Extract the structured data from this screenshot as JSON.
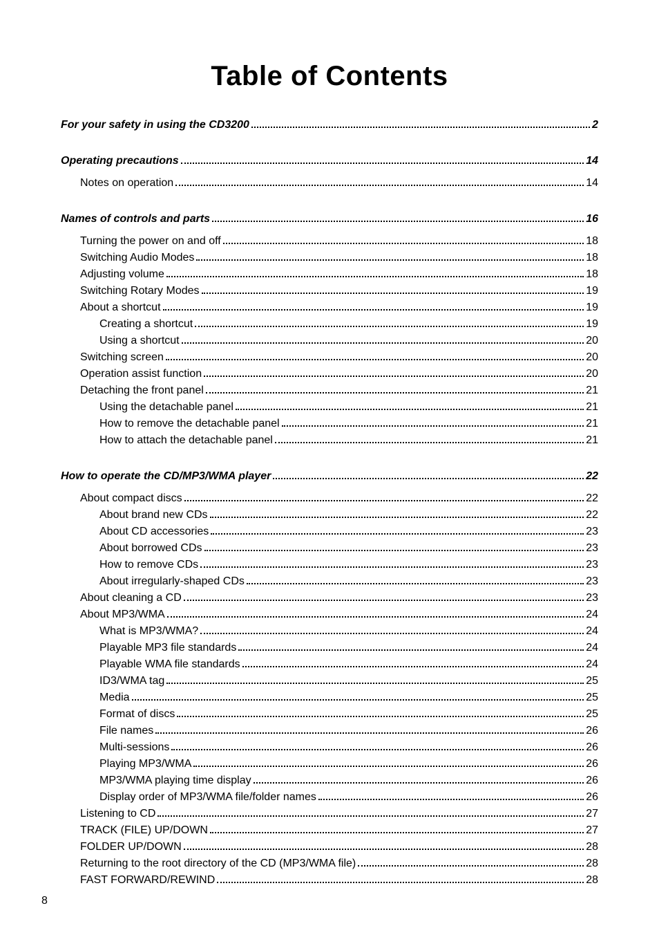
{
  "title": "Table of Contents",
  "page_number": "8",
  "typography": {
    "title_fontsize_pt": 30,
    "section_fontsize_pt": 16,
    "entry_fontsize_pt": 12,
    "title_weight": "900",
    "section_style": "bold-italic",
    "font_family": "Arial"
  },
  "colors": {
    "text": "#000000",
    "background": "#ffffff",
    "leader": "#000000"
  },
  "sections": [
    {
      "heading": "For your safety in using the CD3200",
      "page": "2",
      "entries": []
    },
    {
      "heading": "Operating precautions",
      "page": "14",
      "entries": [
        {
          "label": "Notes on operation",
          "page": "14",
          "level": 1
        }
      ]
    },
    {
      "heading": "Names of controls and parts",
      "page": "16",
      "entries": [
        {
          "label": "Turning the power on and off",
          "page": "18",
          "level": 1
        },
        {
          "label": "Switching Audio Modes",
          "page": "18",
          "level": 1
        },
        {
          "label": "Adjusting volume",
          "page": "18",
          "level": 1
        },
        {
          "label": "Switching Rotary Modes",
          "page": "19",
          "level": 1
        },
        {
          "label": "About a shortcut",
          "page": "19",
          "level": 1
        },
        {
          "label": "Creating a shortcut",
          "page": "19",
          "level": 2
        },
        {
          "label": "Using a shortcut",
          "page": "20",
          "level": 2
        },
        {
          "label": "Switching screen",
          "page": "20",
          "level": 1
        },
        {
          "label": "Operation assist function",
          "page": "20",
          "level": 1
        },
        {
          "label": "Detaching the front panel",
          "page": "21",
          "level": 1
        },
        {
          "label": "Using the detachable panel",
          "page": "21",
          "level": 2
        },
        {
          "label": "How to remove the detachable panel",
          "page": "21",
          "level": 2
        },
        {
          "label": "How to attach the detachable panel",
          "page": "21",
          "level": 2
        }
      ]
    },
    {
      "heading": "How to operate the CD/MP3/WMA player",
      "page": "22",
      "entries": [
        {
          "label": "About compact discs",
          "page": "22",
          "level": 1
        },
        {
          "label": "About brand new CDs",
          "page": "22",
          "level": 2
        },
        {
          "label": "About CD accessories",
          "page": "23",
          "level": 2
        },
        {
          "label": "About borrowed CDs",
          "page": "23",
          "level": 2
        },
        {
          "label": "How to remove CDs",
          "page": "23",
          "level": 2
        },
        {
          "label": "About irregularly-shaped CDs",
          "page": "23",
          "level": 2
        },
        {
          "label": "About cleaning a CD",
          "page": "23",
          "level": 1
        },
        {
          "label": "About MP3/WMA",
          "page": "24",
          "level": 1
        },
        {
          "label": "What is MP3/WMA?",
          "page": "24",
          "level": 2
        },
        {
          "label": "Playable MP3 file standards",
          "page": "24",
          "level": 2
        },
        {
          "label": "Playable WMA file standards",
          "page": "24",
          "level": 2
        },
        {
          "label": "ID3/WMA tag",
          "page": "25",
          "level": 2
        },
        {
          "label": "Media",
          "page": "25",
          "level": 2
        },
        {
          "label": "Format of discs",
          "page": "25",
          "level": 2
        },
        {
          "label": "File names",
          "page": "26",
          "level": 2
        },
        {
          "label": "Multi-sessions",
          "page": "26",
          "level": 2
        },
        {
          "label": "Playing MP3/WMA",
          "page": "26",
          "level": 2
        },
        {
          "label": "MP3/WMA playing time display",
          "page": "26",
          "level": 2
        },
        {
          "label": "Display order of MP3/WMA file/folder names",
          "page": "26",
          "level": 2
        },
        {
          "label": "Listening to CD",
          "page": "27",
          "level": 1
        },
        {
          "label": "TRACK (FILE) UP/DOWN",
          "page": "27",
          "level": 1
        },
        {
          "label": "FOLDER UP/DOWN",
          "page": "28",
          "level": 1
        },
        {
          "label": "Returning to the root directory of the CD (MP3/WMA file)",
          "page": "28",
          "level": 1
        },
        {
          "label": "FAST FORWARD/REWIND",
          "page": "28",
          "level": 1
        }
      ]
    }
  ]
}
